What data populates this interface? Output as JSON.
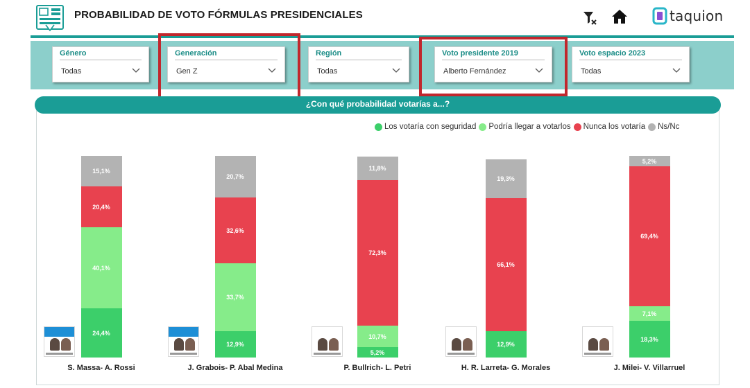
{
  "header": {
    "title": "PROBABILIDAD DE VOTO FÓRMULAS PRESIDENCIALES",
    "brand": "taquion",
    "icons": {
      "app": "report-icon",
      "filter": "filter-clear-icon",
      "home": "home-icon",
      "logo": "taquion-logo-icon"
    },
    "accent_color": "#1a9d96"
  },
  "slicers": [
    {
      "label": "Género",
      "value": "Todas"
    },
    {
      "label": "Generación",
      "value": "Gen Z"
    },
    {
      "label": "Región",
      "value": "Todas"
    },
    {
      "label": "Voto presidente 2019",
      "value": "Alberto Fernández"
    },
    {
      "label": "Voto espacio 2023",
      "value": "Todas"
    }
  ],
  "chart_data": {
    "type": "bar",
    "stacked": true,
    "title": "¿Con qué probabilidad votarías a...?",
    "categories": [
      "S. Massa- A. Rossi",
      "J. Grabois- P. Abal Medina",
      "P. Bullrich- L. Petri",
      "H. R. Larreta- G. Morales",
      "J. Milei- V. Villarruel"
    ],
    "series": [
      {
        "name": "Los votaría con seguridad",
        "color": "#3ccf6a",
        "values": [
          24.4,
          12.9,
          5.2,
          12.9,
          18.3
        ],
        "labels": [
          "24,4%",
          "12,9%",
          "5,2%",
          "12,9%",
          "18,3%"
        ]
      },
      {
        "name": "Podría llegar a votarlos",
        "color": "#86ec8a",
        "values": [
          40.1,
          33.7,
          10.7,
          0,
          7.1
        ],
        "labels": [
          "40,1%",
          "33,7%",
          "10,7%",
          "",
          "7,1%"
        ]
      },
      {
        "name": "Nunca los votaría",
        "color": "#e8424f",
        "values": [
          20.4,
          32.6,
          72.3,
          66.1,
          69.4
        ],
        "labels": [
          "20,4%",
          "32,6%",
          "72,3%",
          "66,1%",
          "69,4%"
        ]
      },
      {
        "name": "Ns/Nc",
        "color": "#b3b3b3",
        "values": [
          15.1,
          20.7,
          11.8,
          19.3,
          5.2
        ],
        "labels": [
          "15,1%",
          "20,7%",
          "11,8%",
          "19,3%",
          "5,2%"
        ]
      }
    ],
    "legend_position": "top-right",
    "ylim": [
      0,
      100
    ]
  }
}
